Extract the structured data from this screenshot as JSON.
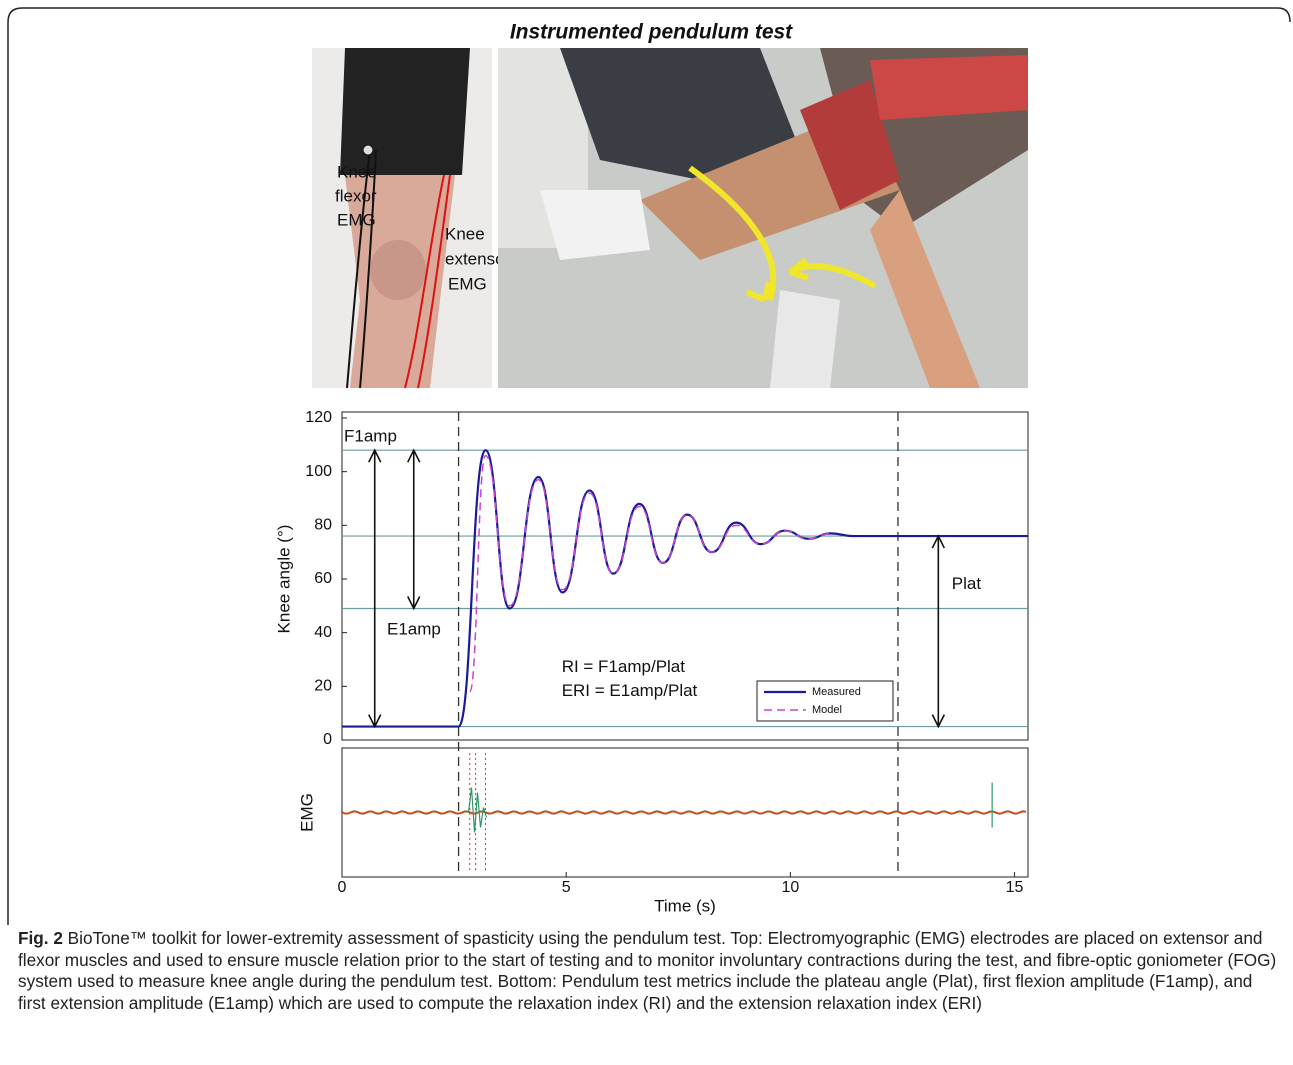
{
  "figure": {
    "title": "Instrumented pendulum test",
    "photo_labels": [
      "Knee",
      "flexor",
      "EMG",
      "Knee",
      "extensor",
      "EMG"
    ]
  },
  "chart_data": {
    "type": "line",
    "y_label": "Knee angle (°)",
    "emg_label": "EMG",
    "x_label": "Time (s)",
    "xlim": [
      0,
      15.3
    ],
    "xticks": [
      0,
      5,
      10,
      15
    ],
    "ylim": [
      0,
      120
    ],
    "yticks": [
      0,
      20,
      40,
      60,
      80,
      100,
      120
    ],
    "series": [
      {
        "name": "Measured",
        "color": "#1a1a9a",
        "x": [
          0,
          2.6,
          3.2,
          3.74,
          4.38,
          4.92,
          5.52,
          6.05,
          6.63,
          7.16,
          7.7,
          8.25,
          8.79,
          9.34,
          9.88,
          10.41,
          10.9,
          11.4,
          15.3
        ],
        "values": [
          5,
          5,
          108,
          49,
          98,
          55,
          93,
          62,
          88,
          66,
          84,
          70,
          81,
          73,
          78,
          75,
          77,
          76,
          76
        ]
      },
      {
        "name": "Model",
        "color": "#cc44cc",
        "dash": true,
        "x": [
          2.85,
          3.2,
          3.74,
          4.38,
          4.92,
          5.52,
          6.05,
          6.63,
          7.16,
          7.7,
          8.25,
          8.79,
          9.34,
          9.88,
          10.41,
          10.9
        ],
        "values": [
          18,
          106,
          50,
          97,
          56,
          92,
          62,
          87,
          66,
          84,
          70,
          80,
          73,
          78,
          75,
          77
        ]
      }
    ],
    "reference_lines": [
      108,
      76,
      49,
      5
    ],
    "vertical_lines": [
      2.6,
      12.4
    ],
    "annotations": [
      "F1amp",
      "E1amp",
      "Plat",
      "RI = F1amp/Plat",
      "ERI = E1amp/Plat"
    ]
  },
  "caption": {
    "label": "Fig. 2",
    "text": "BioTone™ toolkit for lower-extremity assessment of spasticity using the pendulum test. Top: Electromyographic (EMG) electrodes are placed on extensor and flexor muscles and used to ensure muscle relation prior to the start of testing and to monitor involuntary contractions during the test, and fibre-optic goniometer (FOG) system used to measure knee angle during the pendulum test. Bottom: Pendulum test metrics include the plateau angle (Plat), first flexion amplitude (F1amp), and first extension amplitude (E1amp) which are used to compute the relaxation index (RI) and the extension relaxation index (ERI)"
  }
}
